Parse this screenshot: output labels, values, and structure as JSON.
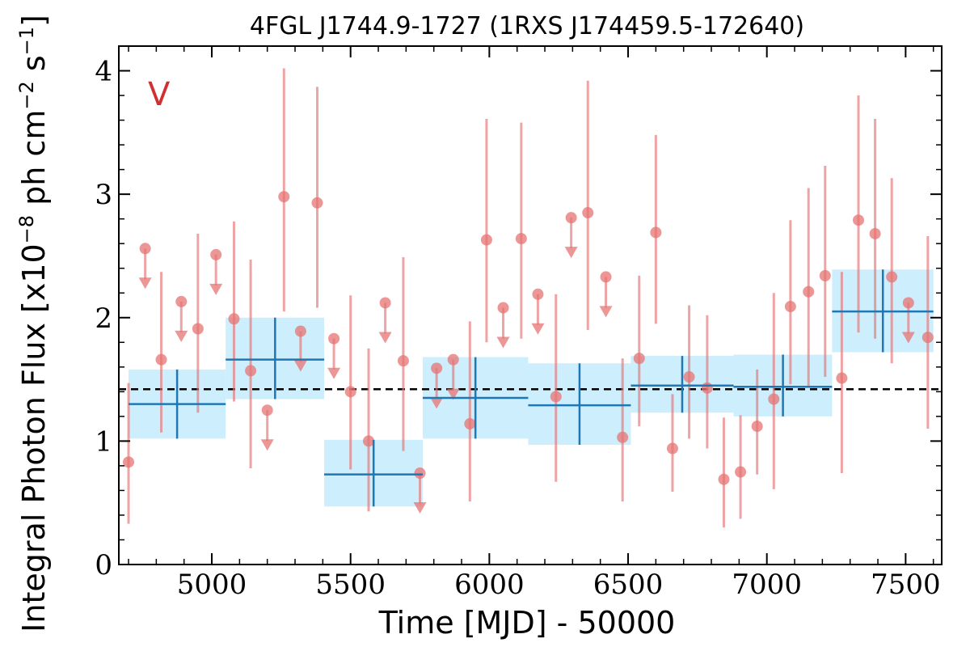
{
  "chart_data": {
    "type": "scatter",
    "title": "4FGL J1744.9-1727 (1RXS J174459.5-172640)",
    "xlabel": "Time [MJD] - 50000",
    "ylabel": "Integral Photon Flux [x10^-8 ph cm^-2 s^-1]",
    "ylabel_parts": {
      "pre": "Integral Photon Flux [x10",
      "exp1": "−8",
      "mid": " ph cm",
      "exp2": "−2",
      "mid2": " s",
      "exp3": "−1",
      "post": "]"
    },
    "variability_flag": "V",
    "xlim": [
      4665,
      7630
    ],
    "ylim": [
      0,
      4.2
    ],
    "xticks": [
      5000,
      5500,
      6000,
      6500,
      7000,
      7500
    ],
    "yticks": [
      0,
      1,
      2,
      3,
      4
    ],
    "average_flux": 1.42,
    "colors": {
      "points": "#e57373",
      "bins": "#1f77b4",
      "bin_fill": "#cdeefc",
      "flag": "#d32f2f",
      "average": "#000000"
    },
    "points": [
      {
        "x": 4700,
        "y": 0.83,
        "lo": 0.33,
        "hi": 1.47
      },
      {
        "x": 4818,
        "y": 1.66,
        "lo": 1.07,
        "hi": 2.37
      },
      {
        "x": 4950,
        "y": 1.91,
        "lo": 1.23,
        "hi": 2.68
      },
      {
        "x": 5080,
        "y": 1.99,
        "lo": 1.32,
        "hi": 2.78
      },
      {
        "x": 5140,
        "y": 1.57,
        "lo": 0.78,
        "hi": 2.47
      },
      {
        "x": 5260,
        "y": 2.98,
        "lo": 2.05,
        "hi": 4.02
      },
      {
        "x": 5380,
        "y": 2.93,
        "lo": 2.08,
        "hi": 3.87
      },
      {
        "x": 5500,
        "y": 1.4,
        "lo": 0.77,
        "hi": 2.18
      },
      {
        "x": 5565,
        "y": 1.0,
        "lo": 0.43,
        "hi": 1.75
      },
      {
        "x": 5690,
        "y": 1.65,
        "lo": 0.92,
        "hi": 2.49
      },
      {
        "x": 5930,
        "y": 1.14,
        "lo": 0.51,
        "hi": 1.97
      },
      {
        "x": 5990,
        "y": 2.63,
        "lo": 1.8,
        "hi": 3.61
      },
      {
        "x": 6115,
        "y": 2.64,
        "lo": 1.83,
        "hi": 3.58
      },
      {
        "x": 6240,
        "y": 1.36,
        "lo": 0.67,
        "hi": 2.19
      },
      {
        "x": 6355,
        "y": 2.85,
        "lo": 1.9,
        "hi": 3.92
      },
      {
        "x": 6480,
        "y": 1.03,
        "lo": 0.51,
        "hi": 1.67
      },
      {
        "x": 6540,
        "y": 1.67,
        "lo": 1.12,
        "hi": 2.34
      },
      {
        "x": 6600,
        "y": 2.69,
        "lo": 1.95,
        "hi": 3.48
      },
      {
        "x": 6660,
        "y": 0.94,
        "lo": 0.59,
        "hi": 1.38
      },
      {
        "x": 6720,
        "y": 1.52,
        "lo": 1.02,
        "hi": 2.1
      },
      {
        "x": 6785,
        "y": 1.43,
        "lo": 0.94,
        "hi": 2.02
      },
      {
        "x": 6845,
        "y": 0.69,
        "lo": 0.3,
        "hi": 1.19
      },
      {
        "x": 6905,
        "y": 0.75,
        "lo": 0.37,
        "hi": 1.21
      },
      {
        "x": 6965,
        "y": 1.12,
        "lo": 0.73,
        "hi": 1.58
      },
      {
        "x": 7025,
        "y": 1.34,
        "lo": 0.61,
        "hi": 2.2
      },
      {
        "x": 7085,
        "y": 2.09,
        "lo": 1.46,
        "hi": 2.79
      },
      {
        "x": 7150,
        "y": 2.21,
        "lo": 1.44,
        "hi": 3.05
      },
      {
        "x": 7210,
        "y": 2.34,
        "lo": 1.52,
        "hi": 3.23
      },
      {
        "x": 7270,
        "y": 1.51,
        "lo": 0.74,
        "hi": 2.37
      },
      {
        "x": 7330,
        "y": 2.79,
        "lo": 1.88,
        "hi": 3.8
      },
      {
        "x": 7390,
        "y": 2.68,
        "lo": 1.83,
        "hi": 3.61
      },
      {
        "x": 7450,
        "y": 2.33,
        "lo": 1.63,
        "hi": 3.13
      },
      {
        "x": 7580,
        "y": 1.84,
        "lo": 1.1,
        "hi": 2.66
      }
    ],
    "upper_limits": [
      {
        "x": 4760,
        "y": 2.56
      },
      {
        "x": 4890,
        "y": 2.13
      },
      {
        "x": 5015,
        "y": 2.51
      },
      {
        "x": 5200,
        "y": 1.25
      },
      {
        "x": 5320,
        "y": 1.89
      },
      {
        "x": 5440,
        "y": 1.83
      },
      {
        "x": 5625,
        "y": 2.12
      },
      {
        "x": 5750,
        "y": 0.74
      },
      {
        "x": 5810,
        "y": 1.59
      },
      {
        "x": 5870,
        "y": 1.66
      },
      {
        "x": 6050,
        "y": 2.08
      },
      {
        "x": 6175,
        "y": 2.19
      },
      {
        "x": 6295,
        "y": 2.81
      },
      {
        "x": 6420,
        "y": 2.33
      },
      {
        "x": 7510,
        "y": 2.12
      }
    ],
    "bins": [
      {
        "x0": 4700,
        "x1": 5050,
        "xc": 4875,
        "y": 1.3,
        "lo": 1.02,
        "hi": 1.58
      },
      {
        "x0": 5050,
        "x1": 5405,
        "xc": 5228,
        "y": 1.66,
        "lo": 1.34,
        "hi": 2.0
      },
      {
        "x0": 5405,
        "x1": 5760,
        "xc": 5583,
        "y": 0.73,
        "lo": 0.47,
        "hi": 1.01
      },
      {
        "x0": 5760,
        "x1": 6140,
        "xc": 5950,
        "y": 1.35,
        "lo": 1.02,
        "hi": 1.68
      },
      {
        "x0": 6140,
        "x1": 6510,
        "xc": 6325,
        "y": 1.29,
        "lo": 0.97,
        "hi": 1.63
      },
      {
        "x0": 6510,
        "x1": 6880,
        "xc": 6695,
        "y": 1.45,
        "lo": 1.23,
        "hi": 1.69
      },
      {
        "x0": 6880,
        "x1": 7235,
        "xc": 7058,
        "y": 1.44,
        "lo": 1.2,
        "hi": 1.7
      },
      {
        "x0": 7235,
        "x1": 7600,
        "xc": 7418,
        "y": 2.05,
        "lo": 1.72,
        "hi": 2.39
      }
    ]
  }
}
